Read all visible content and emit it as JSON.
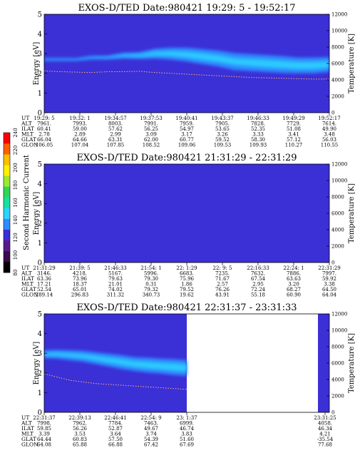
{
  "chart_data": [
    {
      "type": "heatmap",
      "title": "EXOS-D/TED  Date:980421  19:29: 5 - 19:52:17",
      "ylabel": "Energy [eV]",
      "ylabel_right": "Temperature [K]",
      "ylim": [
        0,
        5
      ],
      "ylim_right": [
        0,
        12000
      ],
      "yticks": [
        "0",
        "1",
        "2",
        "3",
        "4",
        "5"
      ],
      "yticks_right": [
        "0",
        "2000",
        "4000",
        "6000",
        "8000",
        "10000",
        "12000"
      ],
      "background_color": "#3b2fd6",
      "band": {
        "color": "#2f8cff",
        "core_color": "#29d4ff",
        "center_energy": [
          2.7,
          2.7,
          2.7,
          2.8,
          2.8,
          2.9,
          2.9,
          3.0,
          3.0,
          2.95,
          2.85,
          2.75,
          2.6,
          2.55,
          2.5,
          2.45,
          2.4,
          2.4,
          2.45
        ],
        "width_energy": [
          0.15,
          0.15,
          0.15,
          0.2,
          0.2,
          0.3,
          0.35,
          0.5,
          0.6,
          0.7,
          0.75,
          0.8,
          0.85,
          0.85,
          0.85,
          0.85,
          0.8,
          0.8,
          0.75
        ],
        "strength": [
          0.15,
          0.15,
          0.15,
          0.2,
          0.25,
          0.45,
          0.6,
          0.75,
          0.8,
          0.85,
          0.9,
          0.85,
          0.8,
          0.85,
          0.9,
          0.9,
          0.9,
          0.9,
          0.9
        ]
      },
      "temperature_curve": [
        5100,
        5000,
        4950,
        4900,
        5000,
        5000,
        5050,
        4900,
        4800,
        4700,
        4600,
        4500,
        4400,
        4300,
        4250,
        4200,
        4150,
        4100,
        4100
      ],
      "ephemeris": {
        "rows": [
          "UT",
          "ALT",
          "ILAT",
          "MLT",
          "GLAT",
          "GLON"
        ],
        "columns": [
          [
            "19:29: 5",
            "7961.",
            "60.41",
            "2.78",
            "66.04",
            "106.05"
          ],
          [
            "19:32: 1",
            "7993.",
            "59.00",
            "2.89",
            "64.66",
            "107.04"
          ],
          [
            "19:34:57",
            "8003.",
            "57.62",
            "2.99",
            "63.31",
            "107.85"
          ],
          [
            "19:37:53",
            "7991.",
            "56.25",
            "3.09",
            "62.00",
            "108.52"
          ],
          [
            "19:40:41",
            "7959.",
            "54.97",
            "3.17",
            "60.77",
            "109.06"
          ],
          [
            "19:43:37",
            "7905.",
            "53.65",
            "3.26",
            "59.52",
            "109.53"
          ],
          [
            "19:46:33",
            "7828.",
            "52.35",
            "3.33",
            "58.30",
            "109.93"
          ],
          [
            "19:49:29",
            "7729.",
            "51.08",
            "3.41",
            "57.12",
            "110.27"
          ],
          [
            "19:52:17",
            "7614.",
            "49.90",
            "3.48",
            "56.03",
            "110.55"
          ]
        ]
      }
    },
    {
      "type": "heatmap",
      "title": "EXOS-D/TED  Date:980421  21:31:29 - 22:31:29",
      "ylabel": "Energy [eV]",
      "ylabel_right": "Temperature [K]",
      "ylim": [
        0,
        5
      ],
      "ylim_right": [
        0,
        12000
      ],
      "yticks": [
        "0",
        "1",
        "2",
        "3",
        "4",
        "5"
      ],
      "yticks_right": [
        "0",
        "2000",
        "4000",
        "6000",
        "8000",
        "10000",
        "12000"
      ],
      "background_color": "#3b2fd6",
      "ephemeris": {
        "rows": [
          "UT",
          "ALT",
          "ILAT",
          "MLT",
          "GLAT",
          "GLON"
        ],
        "columns": [
          [
            "21:31:29",
            "3146.",
            "63.36",
            "17.21",
            "52.54",
            "289.14"
          ],
          [
            "21:39: 5",
            "4218.",
            "73.96",
            "18.37",
            "65.01",
            "296.83"
          ],
          [
            "21:46:33",
            "5167.",
            "79.63",
            "21.01",
            "74.02",
            "311.32"
          ],
          [
            "21:54: 1",
            "5996.",
            "79.30",
            "0.31",
            "79.32",
            "340.73"
          ],
          [
            "22: 1:29",
            "6683.",
            "75.96",
            "1.86",
            "79.52",
            "19.62"
          ],
          [
            "22: 9: 5",
            "7235.",
            "71.67",
            "2.57",
            "76.26",
            "43.91"
          ],
          [
            "22:16:33",
            "7632.",
            "67.54",
            "2.95",
            "72.24",
            "55.18"
          ],
          [
            "22:24: 1",
            "7886.",
            "63.63",
            "3.20",
            "68.27",
            "60.90"
          ],
          [
            "22:31:29",
            "7997.",
            "59.92",
            "3.38",
            "64.50",
            "64.04"
          ]
        ]
      }
    },
    {
      "type": "heatmap",
      "title": "EXOS-D/TED  Date:980421  22:31:37 - 23:31:33",
      "ylabel": "Energy [eV]",
      "ylabel_right": "Temperature [K]",
      "ylim": [
        0,
        5
      ],
      "ylim_right": [
        0,
        12000
      ],
      "yticks": [
        "0",
        "1",
        "2",
        "3",
        "4",
        "5"
      ],
      "yticks_right": [
        "0",
        "2000",
        "4000",
        "6000",
        "8000",
        "10000",
        "12000"
      ],
      "background_color": "#3b2fd6",
      "data_coverage": [
        0,
        0.5,
        0.96,
        1
      ],
      "band": {
        "color": "#2f8cff",
        "core_color": "#29d4ff",
        "center_energy": [
          2.95,
          2.95,
          2.9,
          2.85,
          2.75,
          2.65,
          2.55,
          2.45,
          2.4,
          2.35,
          2.3,
          2.25
        ],
        "width_energy": [
          0.4,
          0.45,
          0.5,
          0.55,
          0.6,
          0.65,
          0.7,
          0.7,
          0.75,
          0.75,
          0.8,
          0.8
        ],
        "strength": [
          0.6,
          0.65,
          0.7,
          0.7,
          0.75,
          0.8,
          0.85,
          0.85,
          0.9,
          0.9,
          0.9,
          0.9
        ]
      },
      "temperature_curve": [
        4700,
        4300,
        3900,
        3700,
        3500,
        3400,
        3300,
        3200,
        3100,
        3000,
        2900,
        2800
      ],
      "ephemeris": {
        "rows": [
          "UT",
          "ALT",
          "ILAT",
          "MLT",
          "GLAT",
          "GLON"
        ],
        "columns": [
          [
            "22:31:37",
            "7998.",
            "59.85",
            "3.39",
            "64.44",
            "64.08"
          ],
          [
            "22:39:13",
            "7962.",
            "56.26",
            "3.53",
            "60.83",
            "65.88"
          ],
          [
            "22:46:41",
            "7784.",
            "52.87",
            "3.64",
            "57.50",
            "66.88"
          ],
          [
            "22:54: 9",
            "7463.",
            "49.67",
            "3.74",
            "54.39",
            "67.42"
          ],
          [
            "23: 1:37",
            "6999.",
            "46.74",
            "3.83",
            "51.60",
            "67.69"
          ],
          [
            "23:31:25",
            "4058.",
            "46.34",
            "4.21",
            "-35.54",
            "77.68"
          ]
        ]
      }
    }
  ],
  "colorbar": {
    "label": "Second Harmonic Current",
    "ticks": [
      "80",
      "100",
      "120",
      "140",
      "160",
      "180",
      "200",
      "220",
      "240"
    ],
    "colors": [
      "#000000",
      "#3a0a4a",
      "#5a1a8a",
      "#3b2fd6",
      "#2f8cff",
      "#29d4ff",
      "#19e0a0",
      "#2fd65a",
      "#9ee830",
      "#fff000",
      "#ffc000",
      "#ff6000",
      "#ff0000"
    ]
  }
}
